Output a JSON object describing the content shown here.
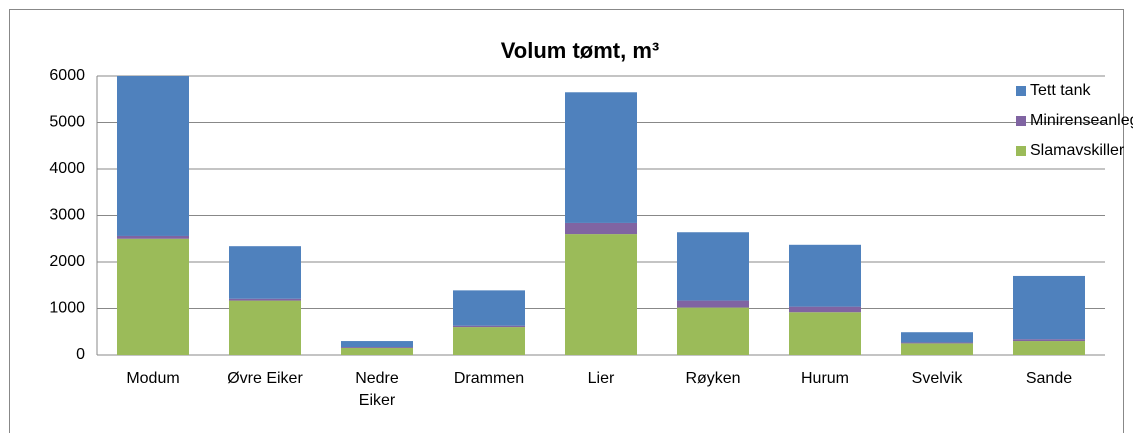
{
  "chart_data": {
    "type": "stacked_bar",
    "title": "Volum tømt, m³",
    "categories": [
      "Modum",
      "Øvre Eiker",
      "Nedre\nEiker",
      "Drammen",
      "Lier",
      "Røyken",
      "Hurum",
      "Svelvik",
      "Sande"
    ],
    "series": [
      {
        "name": "Slamavskiller",
        "color": "#9bbb59",
        "values": [
          2500,
          1170,
          150,
          600,
          2600,
          1020,
          920,
          250,
          300
        ]
      },
      {
        "name": "Minirenseanlegg",
        "color": "#8064a2",
        "values": [
          60,
          40,
          20,
          30,
          240,
          150,
          120,
          20,
          40
        ]
      },
      {
        "name": "Tett tank",
        "color": "#4f81bd",
        "values": [
          3440,
          1130,
          130,
          760,
          2810,
          1470,
          1330,
          220,
          1360
        ]
      }
    ],
    "ylim": [
      0,
      6000
    ],
    "yticks": [
      0,
      1000,
      2000,
      3000,
      4000,
      5000,
      6000
    ],
    "grid": true,
    "legend": "upper right"
  }
}
